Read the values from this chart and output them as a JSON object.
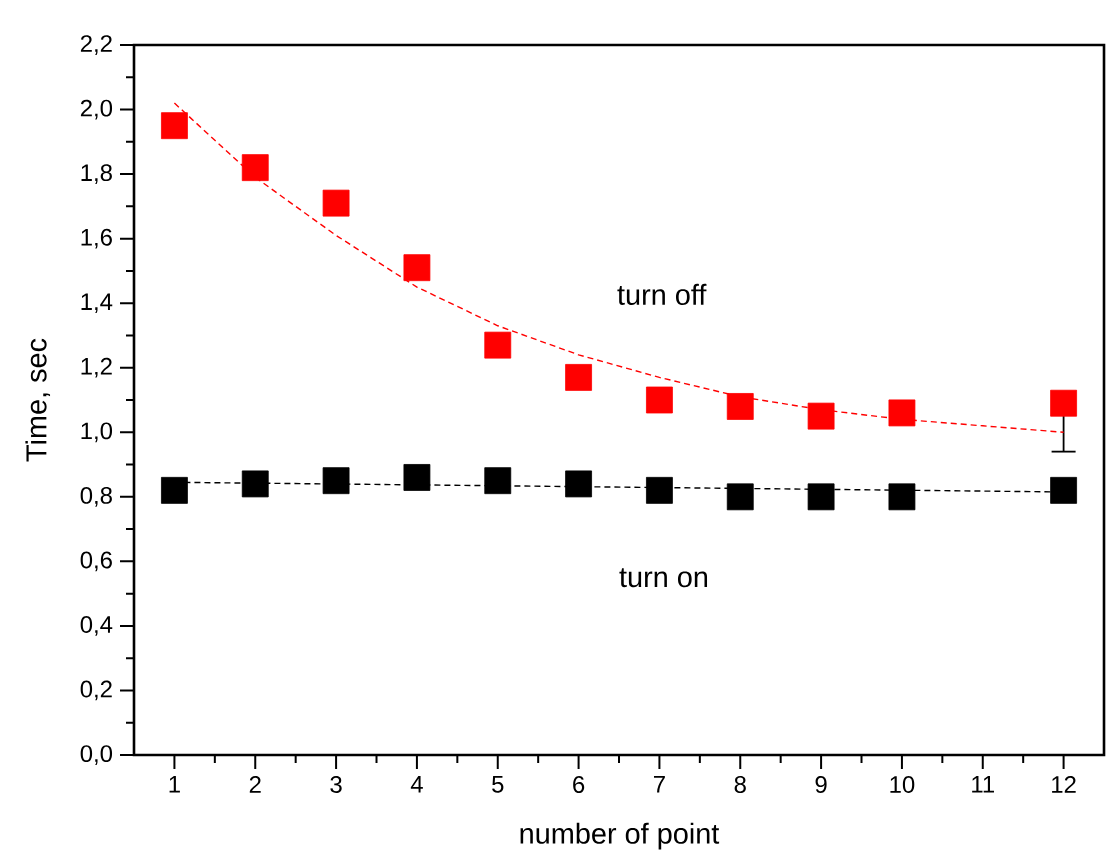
{
  "chart_data": {
    "type": "scatter",
    "xlabel": "number of point",
    "ylabel": "Time, sec",
    "xlim": [
      0.5,
      12.5
    ],
    "ylim": [
      0,
      2.2
    ],
    "xticks": [
      1,
      2,
      3,
      4,
      5,
      6,
      7,
      8,
      9,
      10,
      11,
      12
    ],
    "yticks": [
      {
        "value": 0,
        "label": "0,0"
      },
      {
        "value": 0.2,
        "label": "0,2"
      },
      {
        "value": 0.4,
        "label": "0,4"
      },
      {
        "value": 0.6,
        "label": "0,6"
      },
      {
        "value": 0.8,
        "label": "0,8"
      },
      {
        "value": 1.0,
        "label": "1,0"
      },
      {
        "value": 1.2,
        "label": "1,2"
      },
      {
        "value": 1.4,
        "label": "1,4"
      },
      {
        "value": 1.6,
        "label": "1,6"
      },
      {
        "value": 1.8,
        "label": "1,8"
      },
      {
        "value": 2.0,
        "label": "2,0"
      },
      {
        "value": 2.2,
        "label": "2,2"
      }
    ],
    "marker": "square",
    "series": [
      {
        "name": "turn off",
        "color": "#ff0000",
        "x": [
          1,
          2,
          3,
          4,
          5,
          6,
          7,
          8,
          9,
          10,
          12
        ],
        "values": [
          1.95,
          1.82,
          1.71,
          1.51,
          1.27,
          1.17,
          1.1,
          1.08,
          1.05,
          1.06,
          1.09
        ],
        "errors": [
          null,
          null,
          null,
          null,
          null,
          null,
          null,
          null,
          null,
          null,
          [
            0.94,
            1.09
          ]
        ]
      },
      {
        "name": "turn on",
        "color": "#000000",
        "x": [
          1,
          2,
          3,
          4,
          5,
          6,
          7,
          8,
          9,
          10,
          12
        ],
        "values": [
          0.82,
          0.84,
          0.85,
          0.86,
          0.85,
          0.84,
          0.82,
          0.8,
          0.8,
          0.8,
          0.82
        ]
      },
      {
        "type": "line",
        "color": "#ff0000",
        "line_style": "dashed",
        "marker": "none",
        "x": [
          1,
          2,
          3,
          4,
          5,
          6,
          7,
          8,
          9,
          10,
          11,
          12
        ],
        "values": [
          2.02,
          1.79,
          1.61,
          1.45,
          1.33,
          1.24,
          1.17,
          1.11,
          1.07,
          1.04,
          1.02,
          1.0
        ]
      },
      {
        "type": "line",
        "color": "#000000",
        "line_style": "dashed",
        "marker": "none",
        "x": [
          1,
          4,
          8,
          12
        ],
        "values": [
          0.845,
          0.837,
          0.826,
          0.815
        ]
      }
    ]
  }
}
